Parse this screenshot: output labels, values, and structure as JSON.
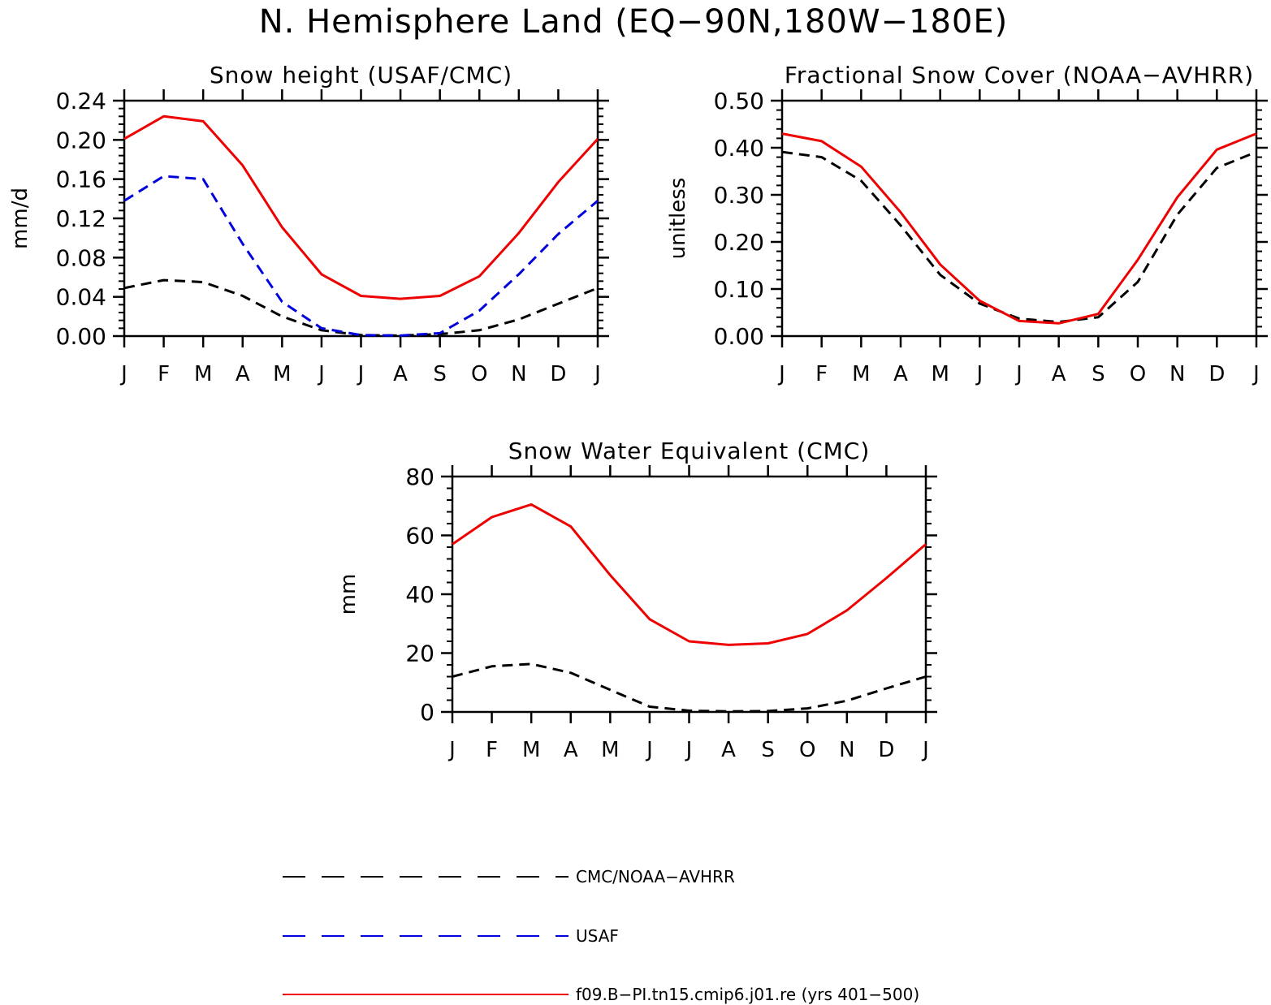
{
  "figure": {
    "title": "N. Hemisphere Land (EQ−90N,180W−180E)"
  },
  "legend": {
    "items": [
      {
        "label": "CMC/NOAA−AVHRR",
        "color": "#000000",
        "dash": "dashed"
      },
      {
        "label": "USAF",
        "color": "#0000dd",
        "dash": "dashed"
      },
      {
        "label": "f09.B−PI.tn15.cmip6.j01.re (yrs 401−500)",
        "color": "#ee0000",
        "dash": "solid"
      }
    ]
  },
  "chart_data": [
    {
      "type": "line",
      "title": "Snow height (USAF/CMC)",
      "xlabel": "",
      "ylabel": "mm/d",
      "categories": [
        "J",
        "F",
        "M",
        "A",
        "M",
        "J",
        "J",
        "A",
        "S",
        "O",
        "N",
        "D",
        "J"
      ],
      "ylim": [
        0,
        0.24
      ],
      "yticks": [
        "0.00",
        "0.04",
        "0.08",
        "0.12",
        "0.16",
        "0.20",
        "0.24"
      ],
      "series": [
        {
          "name": "CMC/NOAA−AVHRR",
          "color": "#000000",
          "dash": "dashed",
          "values": [
            0.049,
            0.057,
            0.055,
            0.041,
            0.02,
            0.006,
            0.001,
            0.0005,
            0.002,
            0.006,
            0.017,
            0.033,
            0.049
          ]
        },
        {
          "name": "USAF",
          "color": "#0000dd",
          "dash": "dashed",
          "values": [
            0.138,
            0.163,
            0.16,
            0.094,
            0.035,
            0.008,
            0.001,
            0.0005,
            0.003,
            0.026,
            0.063,
            0.104,
            0.138
          ]
        },
        {
          "name": "f09.B−PI.tn15.cmip6.j01.re (yrs 401−500)",
          "color": "#ee0000",
          "dash": "solid",
          "values": [
            0.201,
            0.224,
            0.219,
            0.174,
            0.111,
            0.063,
            0.041,
            0.038,
            0.041,
            0.061,
            0.105,
            0.157,
            0.201
          ]
        }
      ]
    },
    {
      "type": "line",
      "title": "Fractional Snow Cover (NOAA−AVHRR)",
      "xlabel": "",
      "ylabel": "unitless",
      "categories": [
        "J",
        "F",
        "M",
        "A",
        "M",
        "J",
        "J",
        "A",
        "S",
        "O",
        "N",
        "D",
        "J"
      ],
      "ylim": [
        0,
        0.5
      ],
      "yticks": [
        "0.00",
        "0.10",
        "0.20",
        "0.30",
        "0.40",
        "0.50"
      ],
      "series": [
        {
          "name": "CMC/NOAA−AVHRR",
          "color": "#000000",
          "dash": "dashed",
          "values": [
            0.391,
            0.38,
            0.33,
            0.235,
            0.13,
            0.069,
            0.037,
            0.03,
            0.04,
            0.115,
            0.258,
            0.357,
            0.391
          ]
        },
        {
          "name": "f09.B−PI.tn15.cmip6.j01.re (yrs 401−500)",
          "color": "#ee0000",
          "dash": "solid",
          "values": [
            0.43,
            0.414,
            0.36,
            0.263,
            0.152,
            0.075,
            0.032,
            0.027,
            0.047,
            0.162,
            0.295,
            0.396,
            0.43
          ]
        }
      ]
    },
    {
      "type": "line",
      "title": "Snow Water Equivalent (CMC)",
      "xlabel": "",
      "ylabel": "mm",
      "categories": [
        "J",
        "F",
        "M",
        "A",
        "M",
        "J",
        "J",
        "A",
        "S",
        "O",
        "N",
        "D",
        "J"
      ],
      "ylim": [
        0,
        80
      ],
      "yticks": [
        "0",
        "20",
        "40",
        "60",
        "80"
      ],
      "series": [
        {
          "name": "CMC/NOAA−AVHRR",
          "color": "#000000",
          "dash": "dashed",
          "values": [
            12.0,
            15.5,
            16.3,
            13.3,
            7.5,
            1.8,
            0.4,
            0.2,
            0.3,
            1.2,
            3.8,
            8.0,
            12.0
          ]
        },
        {
          "name": "f09.B−PI.tn15.cmip6.j01.re (yrs 401−500)",
          "color": "#ee0000",
          "dash": "solid",
          "values": [
            57.0,
            66.2,
            70.5,
            63.0,
            46.5,
            31.5,
            24.0,
            22.8,
            23.3,
            26.5,
            34.5,
            45.5,
            57.0
          ]
        }
      ]
    }
  ]
}
